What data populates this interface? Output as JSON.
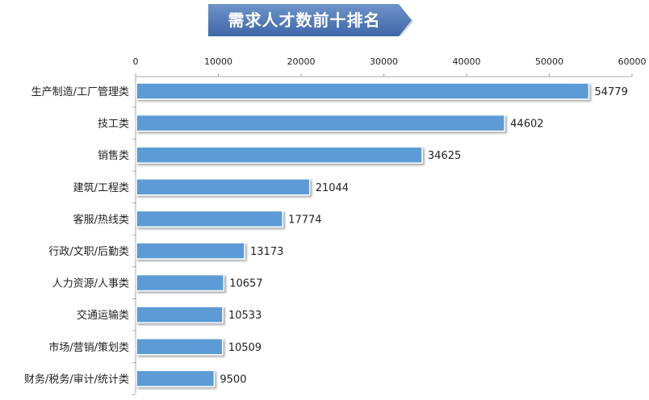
{
  "title": "需求人才数前十排名",
  "colors": {
    "bar_fill": "#5B9BD5",
    "bar_edge": "#ffffff",
    "banner_top": "#6E93C9",
    "banner_bottom": "#3F67A8"
  },
  "chart_data": {
    "type": "bar",
    "orientation": "horizontal",
    "title": "需求人才数前十排名",
    "xlabel": "",
    "ylabel": "",
    "xlim": [
      0,
      60000
    ],
    "x_ticks": [
      "0",
      "10000",
      "20000",
      "30000",
      "40000",
      "50000",
      "60000"
    ],
    "x_axis_position": "top",
    "grid": false,
    "data_labels": true,
    "categories": [
      "生产制造/工厂管理类",
      "技工类",
      "销售类",
      "建筑/工程类",
      "客服/热线类",
      "行政/文职/后勤类",
      "人力资源/人事类",
      "交通运输类",
      "市场/营销/策划类",
      "财务/税务/审计/统计类"
    ],
    "values": [
      54779,
      44602,
      34625,
      21044,
      17774,
      13173,
      10657,
      10533,
      10509,
      9500
    ]
  }
}
